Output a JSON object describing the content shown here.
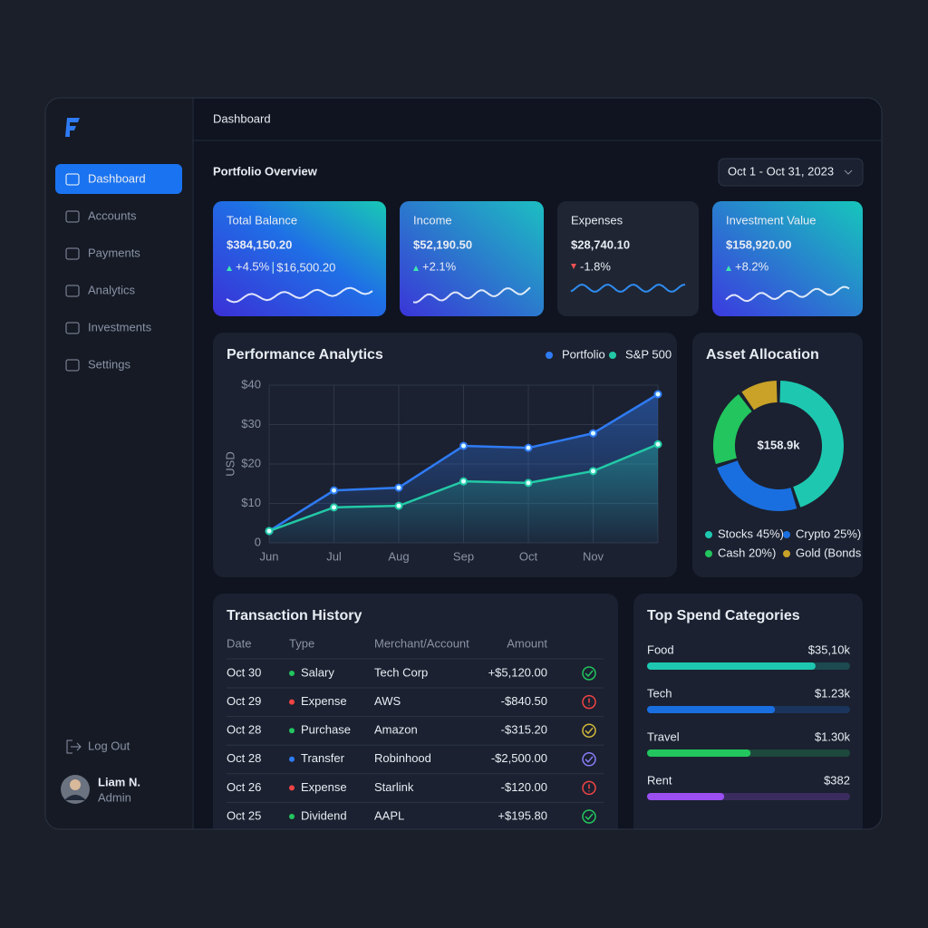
{
  "header": {
    "title": "Dashboard"
  },
  "sidebar": {
    "nav": [
      "Dashboard",
      "Accounts",
      "Payments",
      "Analytics",
      "Investments",
      "Settings"
    ],
    "active": 0,
    "logout": "Log Out",
    "user": {
      "name": "Liam N.",
      "role": "Admin"
    }
  },
  "page": {
    "title": "Portfolio Overview",
    "date_range": "Oct 1 - Oct 31, 2023"
  },
  "cards": [
    {
      "label": "Total Balance",
      "value": "$384,150.20",
      "change": "+4.5%",
      "direction": "up",
      "extra": "$16,500.20"
    },
    {
      "label": "Income",
      "value": "$52,190.50",
      "change": "+2.1%",
      "direction": "up"
    },
    {
      "label": "Expenses",
      "value": "$28,740.10",
      "change": "-1.8%",
      "direction": "down"
    },
    {
      "label": "Investment Value",
      "value": "$158,920.00",
      "change": "+8.2%",
      "direction": "up"
    }
  ],
  "chart_data": [
    {
      "type": "line",
      "title": "Performance Analytics",
      "y_label": "USD",
      "categories": [
        "Jun",
        "Jul",
        "Aug",
        "Sep",
        "Oct",
        "Nov",
        null
      ],
      "series": [
        {
          "name": "Portfolio",
          "color": "#2f7bf5",
          "values": [
            3,
            13.3,
            14,
            24.6,
            24.1,
            27.8,
            37.7
          ]
        },
        {
          "name": "S&P 500",
          "color": "#22c9a6",
          "values": [
            3,
            9,
            9.4,
            15.6,
            15.2,
            18.2,
            25
          ]
        }
      ],
      "ylim": [
        0,
        40
      ],
      "yticks": [
        0,
        {
          "value": 10,
          "label": "$10"
        },
        {
          "value": 20,
          "label": "$20"
        },
        {
          "value": 30,
          "label": "$30"
        },
        {
          "value": 40,
          "label": "$40"
        }
      ],
      "grid": true,
      "legend": "top-right"
    },
    {
      "type": "donut",
      "title": "Asset Allocation",
      "center_label": "$158.9k",
      "categories": [
        "Stocks 45%)",
        "Crypto 25%)",
        "Cash 20%)",
        "Gold (Bonds"
      ],
      "values": [
        45,
        25,
        20,
        10
      ],
      "colors": [
        "#1ec8b0",
        "#1a6fe0",
        "#22c55e",
        "#c9a227"
      ]
    }
  ],
  "transactions": {
    "title": "Transaction History",
    "columns": [
      "Date",
      "Type",
      "Merchant/Account",
      "Amount"
    ],
    "rows": [
      {
        "date": "Oct 30",
        "type": "Salary",
        "merchant": "Tech Corp",
        "amount": "+$5,120.00",
        "dot_color": "#22c55e",
        "amount_color": "#3ccf6e",
        "status": "check",
        "status_color": "#22c55e"
      },
      {
        "date": "Oct 29",
        "type": "Expense",
        "merchant": "AWS",
        "amount": "-$840.50",
        "dot_color": "#ef4444",
        "amount_color": "#f0605a",
        "status": "alert",
        "status_color": "#ef4444"
      },
      {
        "date": "Oct 28",
        "type": "Purchase",
        "merchant": "Amazon",
        "amount": "-$315.20",
        "dot_color": "#22c55e",
        "amount_color": "#f0605a",
        "status": "check",
        "status_color": "#d4b93c"
      },
      {
        "date": "Oct 28",
        "type": "Transfer",
        "merchant": "Robinhood",
        "amount": "-$2,500.00",
        "dot_color": "#2f7bf5",
        "amount_color": "#f0605a",
        "status": "check",
        "status_color": "#8b7cf6"
      },
      {
        "date": "Oct 26",
        "type": "Expense",
        "merchant": "Starlink",
        "amount": "-$120.00",
        "dot_color": "#ef4444",
        "amount_color": "#f0605a",
        "status": "alert",
        "status_color": "#ef4444"
      },
      {
        "date": "Oct 25",
        "type": "Dividend",
        "merchant": "AAPL",
        "amount": "+$195.80",
        "dot_color": "#22c55e",
        "amount_color": "#3ccf6e",
        "status": "check",
        "status_color": "#22c55e"
      }
    ]
  },
  "spend": {
    "title": "Top Spend Categories",
    "items": [
      {
        "name": "Food",
        "amount": "$35,10k",
        "percent": 83,
        "color": "#1ec8b0"
      },
      {
        "name": "Tech",
        "amount": "$1.23k",
        "percent": 63,
        "color": "#1a6fe0"
      },
      {
        "name": "Travel",
        "amount": "$1.30k",
        "percent": 51,
        "color": "#22c55e"
      },
      {
        "name": "Rent",
        "amount": "$382",
        "percent": 38,
        "color": "#9b4ff0"
      }
    ]
  }
}
